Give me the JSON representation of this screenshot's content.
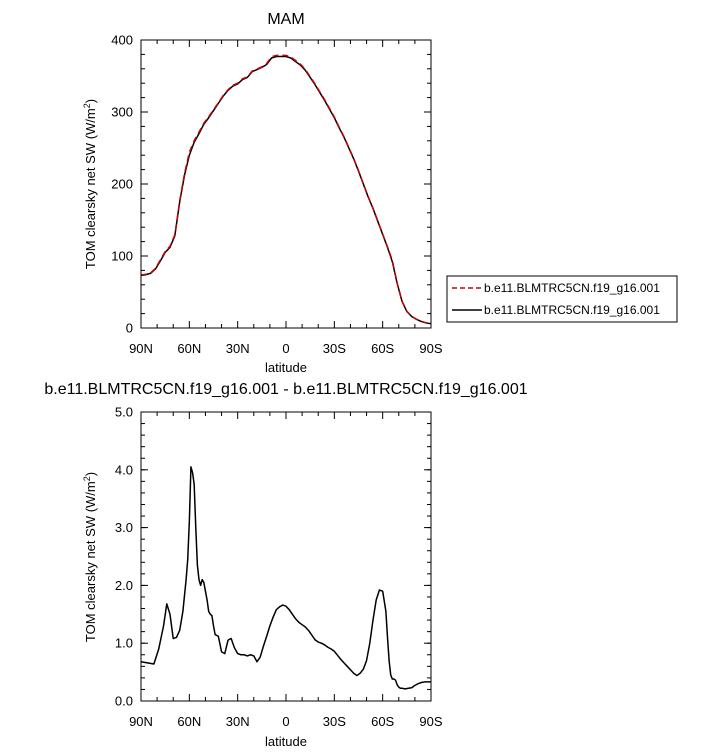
{
  "chart_data": [
    {
      "type": "line",
      "title": "MAM",
      "xlabel": "latitude",
      "ylabel": "TOM clearsky net SW (W/m",
      "ylabel_sup": "2",
      "ylabel_suffix": ")",
      "xlim": [
        90,
        -90
      ],
      "ylim": [
        0,
        400
      ],
      "xticks": [
        90,
        60,
        30,
        0,
        -30,
        -60,
        -90
      ],
      "xtick_labels": [
        "90N",
        "60N",
        "30N",
        "0",
        "30S",
        "60S",
        "90S"
      ],
      "yticks": [
        0,
        100,
        200,
        300,
        400
      ],
      "ytick_labels": [
        "0",
        "100",
        "200",
        "300",
        "400"
      ],
      "legend": {
        "placement": "right",
        "entries": [
          {
            "name": "b.e11.BLMTRC5CN.f19_g16.001",
            "color": "#cc0000",
            "style": "dashed"
          },
          {
            "name": "b.e11.BLMTRC5CN.f19_g16.001",
            "color": "#000000",
            "style": "solid"
          }
        ]
      },
      "series": [
        {
          "name": "b.e11.BLMTRC5CN.f19_g16.001",
          "color": "#000000",
          "style": "solid",
          "x": [
            90,
            87,
            84,
            81,
            78,
            75,
            72,
            69,
            66,
            63,
            60,
            57,
            54,
            51,
            48,
            45,
            42,
            39,
            36,
            33,
            30,
            27,
            24,
            21,
            18,
            15,
            12,
            9,
            6,
            3,
            0,
            -3,
            -6,
            -9,
            -12,
            -15,
            -18,
            -21,
            -24,
            -27,
            -30,
            -33,
            -36,
            -39,
            -42,
            -45,
            -48,
            -51,
            -54,
            -57,
            -60,
            -63,
            -66,
            -69,
            -72,
            -75,
            -78,
            -81,
            -84,
            -87,
            -90
          ],
          "y": [
            73,
            74,
            76,
            82,
            93,
            105,
            112,
            128,
            175,
            212,
            240,
            258,
            270,
            283,
            292,
            302,
            312,
            322,
            330,
            336,
            339,
            345,
            348,
            356,
            359,
            362,
            366,
            375,
            377,
            377,
            377,
            375,
            370,
            365,
            358,
            348,
            338,
            327,
            316,
            304,
            292,
            278,
            265,
            250,
            235,
            218,
            200,
            182,
            166,
            148,
            130,
            112,
            92,
            62,
            37,
            23,
            16,
            12,
            9,
            7,
            6
          ]
        },
        {
          "name": "b.e11.BLMTRC5CN.f19_g16.001",
          "color": "#cc0000",
          "style": "dashed",
          "x": [
            90,
            87,
            84,
            81,
            78,
            75,
            72,
            69,
            66,
            63,
            60,
            57,
            54,
            51,
            48,
            45,
            42,
            39,
            36,
            33,
            30,
            27,
            24,
            21,
            18,
            15,
            12,
            9,
            6,
            3,
            0,
            -3,
            -6,
            -9,
            -12,
            -15,
            -18,
            -21,
            -24,
            -27,
            -30,
            -33,
            -36,
            -39,
            -42,
            -45,
            -48,
            -51,
            -54,
            -57,
            -60,
            -63,
            -66,
            -69,
            -72,
            -75,
            -78,
            -81,
            -84,
            -87,
            -90
          ],
          "y": [
            73.6,
            74.6,
            76.6,
            82.9,
            94.6,
            106.1,
            113.5,
            129.4,
            176.4,
            214.4,
            244,
            260.2,
            272.1,
            284.5,
            293.5,
            303.1,
            312.8,
            322.8,
            330.8,
            337.1,
            340.1,
            346.1,
            348.8,
            356.8,
            359.8,
            362.7,
            367.4,
            376.7,
            378.6,
            378.7,
            378.6,
            376.5,
            371.4,
            366.3,
            359.2,
            349.1,
            339.1,
            328,
            317,
            305,
            293,
            278.9,
            265.8,
            250.7,
            235.6,
            218.5,
            200.5,
            182.5,
            166.5,
            148.5,
            130.5,
            112.8,
            93.9,
            62.4,
            37.4,
            23.3,
            16.2,
            12.2,
            9.2,
            7.2,
            6.3
          ]
        }
      ]
    },
    {
      "type": "line",
      "title": "b.e11.BLMTRC5CN.f19_g16.001 - b.e11.BLMTRC5CN.f19_g16.001",
      "xlabel": "latitude",
      "ylabel": "TOM clearsky net SW (W/m",
      "ylabel_sup": "2",
      "ylabel_suffix": ")",
      "xlim": [
        90,
        -90
      ],
      "ylim": [
        0,
        5
      ],
      "xticks": [
        90,
        60,
        30,
        0,
        -30,
        -60,
        -90
      ],
      "xtick_labels": [
        "90N",
        "60N",
        "30N",
        "0",
        "30S",
        "60S",
        "90S"
      ],
      "yticks": [
        0,
        1,
        2,
        3,
        4,
        5
      ],
      "ytick_labels": [
        "0.0",
        "1.0",
        "2.0",
        "3.0",
        "4.0",
        "5.0"
      ],
      "series": [
        {
          "color": "#000000",
          "style": "solid",
          "x": [
            90,
            86,
            82,
            79,
            76,
            74,
            72,
            70,
            68,
            66,
            64,
            62,
            61,
            60,
            59,
            58,
            57,
            56,
            55,
            54,
            53,
            52,
            51,
            50,
            49,
            48,
            47,
            46,
            45,
            44,
            42,
            40,
            38,
            36,
            35,
            34,
            32,
            30,
            28,
            26,
            24,
            22,
            20,
            18,
            16,
            14,
            12,
            10,
            8,
            6,
            4,
            2,
            0,
            -2,
            -4,
            -6,
            -8,
            -10,
            -12,
            -14,
            -16,
            -18,
            -20,
            -22,
            -24,
            -26,
            -28,
            -30,
            -32,
            -34,
            -36,
            -38,
            -40,
            -42,
            -44,
            -46,
            -48,
            -50,
            -52,
            -54,
            -56,
            -58,
            -60,
            -62,
            -63,
            -64,
            -65,
            -66,
            -67,
            -68,
            -69,
            -70,
            -71,
            -72,
            -74,
            -76,
            -78,
            -80,
            -82,
            -84,
            -86,
            -88,
            -90
          ],
          "y": [
            0.68,
            0.66,
            0.64,
            0.9,
            1.3,
            1.68,
            1.5,
            1.08,
            1.1,
            1.22,
            1.55,
            2.1,
            2.45,
            3.1,
            4.05,
            3.95,
            3.75,
            3.0,
            2.35,
            2.1,
            2.0,
            2.1,
            2.05,
            1.9,
            1.75,
            1.55,
            1.5,
            1.48,
            1.3,
            1.15,
            1.12,
            0.85,
            0.82,
            1.05,
            1.07,
            1.08,
            0.92,
            0.82,
            0.8,
            0.8,
            0.78,
            0.8,
            0.78,
            0.68,
            0.76,
            0.95,
            1.12,
            1.3,
            1.45,
            1.58,
            1.63,
            1.66,
            1.64,
            1.58,
            1.5,
            1.42,
            1.36,
            1.32,
            1.28,
            1.22,
            1.14,
            1.06,
            1.02,
            1.0,
            0.97,
            0.93,
            0.9,
            0.86,
            0.79,
            0.72,
            0.66,
            0.6,
            0.54,
            0.48,
            0.44,
            0.48,
            0.55,
            0.7,
            1.0,
            1.4,
            1.75,
            1.92,
            1.9,
            1.55,
            1.1,
            0.7,
            0.45,
            0.38,
            0.38,
            0.36,
            0.28,
            0.24,
            0.22,
            0.22,
            0.21,
            0.22,
            0.23,
            0.27,
            0.3,
            0.32,
            0.33,
            0.33,
            0.33
          ],
          "name": ""
        }
      ]
    }
  ]
}
